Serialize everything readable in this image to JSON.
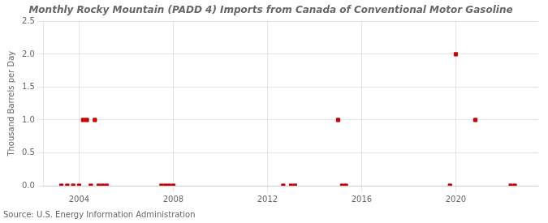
{
  "chart_data": {
    "type": "scatter",
    "title": "Monthly Rocky Mountain (PADD 4) Imports from Canada of Conventional Motor Gasoline",
    "y_label": "Thousand Barrels per Day",
    "annotations": [
      "Source: U.S. Energy Information Administration"
    ],
    "x": [
      2003.25,
      2003.5,
      2003.75,
      2004.0,
      2004.17,
      2004.33,
      2004.5,
      2004.67,
      2004.83,
      2005.0,
      2005.17,
      2007.5,
      2007.67,
      2007.83,
      2008.0,
      2012.67,
      2013.0,
      2013.17,
      2015.0,
      2015.17,
      2015.33,
      2019.75,
      2020.0,
      2020.83,
      2022.33,
      2022.5
    ],
    "values": [
      0.0,
      0.0,
      0.0,
      0.0,
      1.0,
      1.0,
      0.0,
      1.0,
      0.0,
      0.0,
      0.0,
      0.0,
      0.0,
      0.0,
      0.0,
      0.0,
      0.0,
      0.0,
      1.0,
      0.0,
      0.0,
      0.0,
      2.0,
      1.0,
      0.0,
      0.0
    ],
    "color": "#cc0000",
    "marker": "square",
    "xlim": [
      2002.5,
      2023.5
    ],
    "xticks": [
      2004,
      2008,
      2012,
      2016,
      2020
    ],
    "ylim": [
      0.0,
      2.5
    ],
    "yticks": [
      {
        "value": 0.0,
        "label": "0.0"
      },
      0.5,
      {
        "value": 1.0,
        "label": "1.0"
      },
      1.5,
      {
        "value": 2.0,
        "label": "2.0"
      },
      2.5
    ],
    "grid": true
  }
}
